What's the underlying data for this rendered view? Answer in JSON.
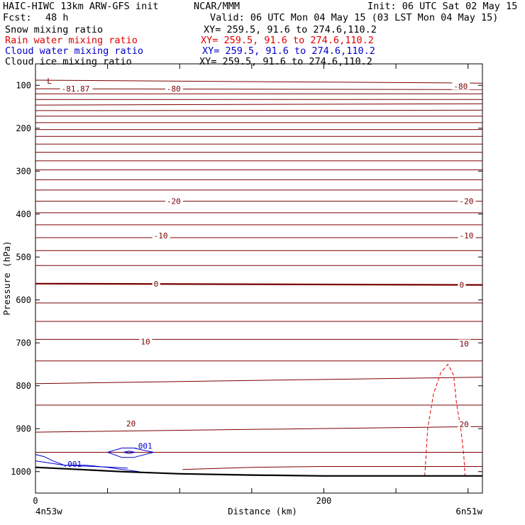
{
  "header": {
    "model": "HAIC-HIWC 13km ARW-GFS init",
    "center": "NCAR/MMM",
    "init": "Init: 06 UTC Sat 02 May 15",
    "fcst_label": "Fcst:",
    "fcst_value": "48 h",
    "valid": "Valid: 06 UTC Mon 04 May 15 (03 LST Mon 04 May 15)"
  },
  "fields": [
    {
      "name": "Snow mixing ratio",
      "xy": "XY= 259.5, 91.6 to 274.6,110.2",
      "color": "#000000"
    },
    {
      "name": "Rain water mixing ratio",
      "xy": "XY= 259.5, 91.6 to 274.6,110.2",
      "color": "#e00000"
    },
    {
      "name": "Cloud water mixing ratio",
      "xy": "XY= 259.5, 91.6 to 274.6,110.2",
      "color": "#0000cc"
    },
    {
      "name": "Cloud ice mixing ratio",
      "xy": "XY= 259.5, 91.6 to 274.6,110.2",
      "color": "#000000"
    }
  ],
  "chart_data": {
    "type": "line",
    "title": "",
    "xlabel": "Distance (km)",
    "ylabel": "Pressure (hPa)",
    "xlim": [
      0,
      310
    ],
    "ylim": [
      50,
      1050
    ],
    "x_ticks": [
      0,
      200
    ],
    "x_minor_ticks": [
      0,
      50,
      100,
      150,
      200,
      250,
      300
    ],
    "y_ticks": [
      100,
      200,
      300,
      400,
      500,
      600,
      700,
      800,
      900,
      1000
    ],
    "x_end_labels": [
      "4n53w",
      "6n51w"
    ],
    "colors": {
      "temperature": "#7a0000",
      "rain": "#e00000",
      "cloud_water": "#0000cc",
      "terrain": "#000000"
    },
    "temperature_isotherms": [
      {
        "y": [
          88,
          95
        ]
      },
      {
        "y": [
          108,
          110
        ]
      },
      {
        "y": [
          120,
          120
        ]
      },
      {
        "y": [
          133,
          133
        ]
      },
      {
        "y": [
          146,
          143
        ]
      },
      {
        "y": [
          159,
          158
        ]
      },
      {
        "y": [
          172,
          172
        ]
      },
      {
        "y": [
          187,
          187
        ]
      },
      {
        "y": [
          203,
          203
        ]
      },
      {
        "y": [
          219,
          219
        ]
      },
      {
        "y": [
          237,
          237
        ]
      },
      {
        "y": [
          256,
          256
        ]
      },
      {
        "y": [
          276,
          276
        ]
      },
      {
        "y": [
          297,
          297
        ]
      },
      {
        "y": [
          320,
          320
        ]
      },
      {
        "y": [
          344,
          344
        ]
      },
      {
        "y": [
          370,
          370
        ]
      },
      {
        "y": [
          397,
          397
        ]
      },
      {
        "y": [
          425,
          425
        ]
      },
      {
        "y": [
          455,
          455
        ]
      },
      {
        "y": [
          485,
          485
        ]
      },
      {
        "y": [
          520,
          520
        ]
      },
      {
        "y": [
          562,
          565
        ]
      },
      {
        "y": [
          607,
          607
        ]
      },
      {
        "y": [
          650,
          650
        ]
      },
      {
        "y": [
          692,
          692
        ]
      },
      {
        "y": [
          742,
          742
        ]
      },
      {
        "y": [
          795,
          780
        ]
      },
      {
        "y": [
          845,
          845
        ]
      },
      {
        "y": [
          908,
          895
        ]
      },
      {
        "y": [
          955,
          955
        ]
      }
    ],
    "bold_isotherm_pressure": 562,
    "near_surface_isotherm": {
      "x": [
        102,
        150,
        200,
        250,
        310
      ],
      "y": [
        995,
        990,
        988,
        988,
        988
      ]
    },
    "contour_labels": [
      {
        "text": "L",
        "x": 8,
        "y": 90
      },
      {
        "text": "-81.87",
        "x": 18,
        "y": 108
      },
      {
        "text": "-80",
        "x": 91,
        "y": 108
      },
      {
        "text": "-80",
        "x": 290,
        "y": 102
      },
      {
        "text": "-20",
        "x": 91,
        "y": 370
      },
      {
        "text": "-20",
        "x": 294,
        "y": 370
      },
      {
        "text": "-10",
        "x": 82,
        "y": 450
      },
      {
        "text": "-10",
        "x": 294,
        "y": 450
      },
      {
        "text": "0",
        "x": 82,
        "y": 562
      },
      {
        "text": "0",
        "x": 294,
        "y": 565
      },
      {
        "text": "10",
        "x": 73,
        "y": 697
      },
      {
        "text": "10",
        "x": 294,
        "y": 702
      },
      {
        "text": "20",
        "x": 63,
        "y": 888
      },
      {
        "text": "20",
        "x": 294,
        "y": 890
      }
    ],
    "rain_contour": {
      "x": [
        270,
        272,
        276,
        281,
        286,
        290,
        292,
        295,
        297,
        298
      ],
      "y": [
        1010,
        900,
        820,
        770,
        750,
        775,
        840,
        900,
        960,
        1010
      ]
    },
    "cloud_water_contours": [
      {
        "x": [
          0,
          6,
          12,
          20,
          35,
          50,
          60,
          72
        ],
        "y": [
          960,
          965,
          975,
          985,
          985,
          990,
          995,
          1000
        ]
      },
      {
        "x": [
          0,
          20,
          40,
          55,
          64
        ],
        "y": [
          975,
          985,
          988,
          990,
          992
        ]
      },
      {
        "x": [
          50,
          60,
          68,
          82,
          68,
          60,
          50
        ],
        "y": [
          955,
          945,
          945,
          955,
          967,
          967,
          955
        ]
      },
      {
        "x": [
          61,
          65,
          69,
          65,
          61
        ],
        "y": [
          955,
          952,
          955,
          958,
          955
        ]
      }
    ],
    "cloud_water_labels": [
      {
        "text": ".001",
        "x": 19,
        "y": 982
      },
      {
        "text": ".001",
        "x": 68,
        "y": 940
      }
    ],
    "terrain": {
      "x": [
        0,
        30,
        60,
        100,
        150,
        200,
        250,
        300,
        310
      ],
      "y": [
        990,
        995,
        1000,
        1005,
        1008,
        1010,
        1010,
        1010,
        1010
      ]
    }
  }
}
